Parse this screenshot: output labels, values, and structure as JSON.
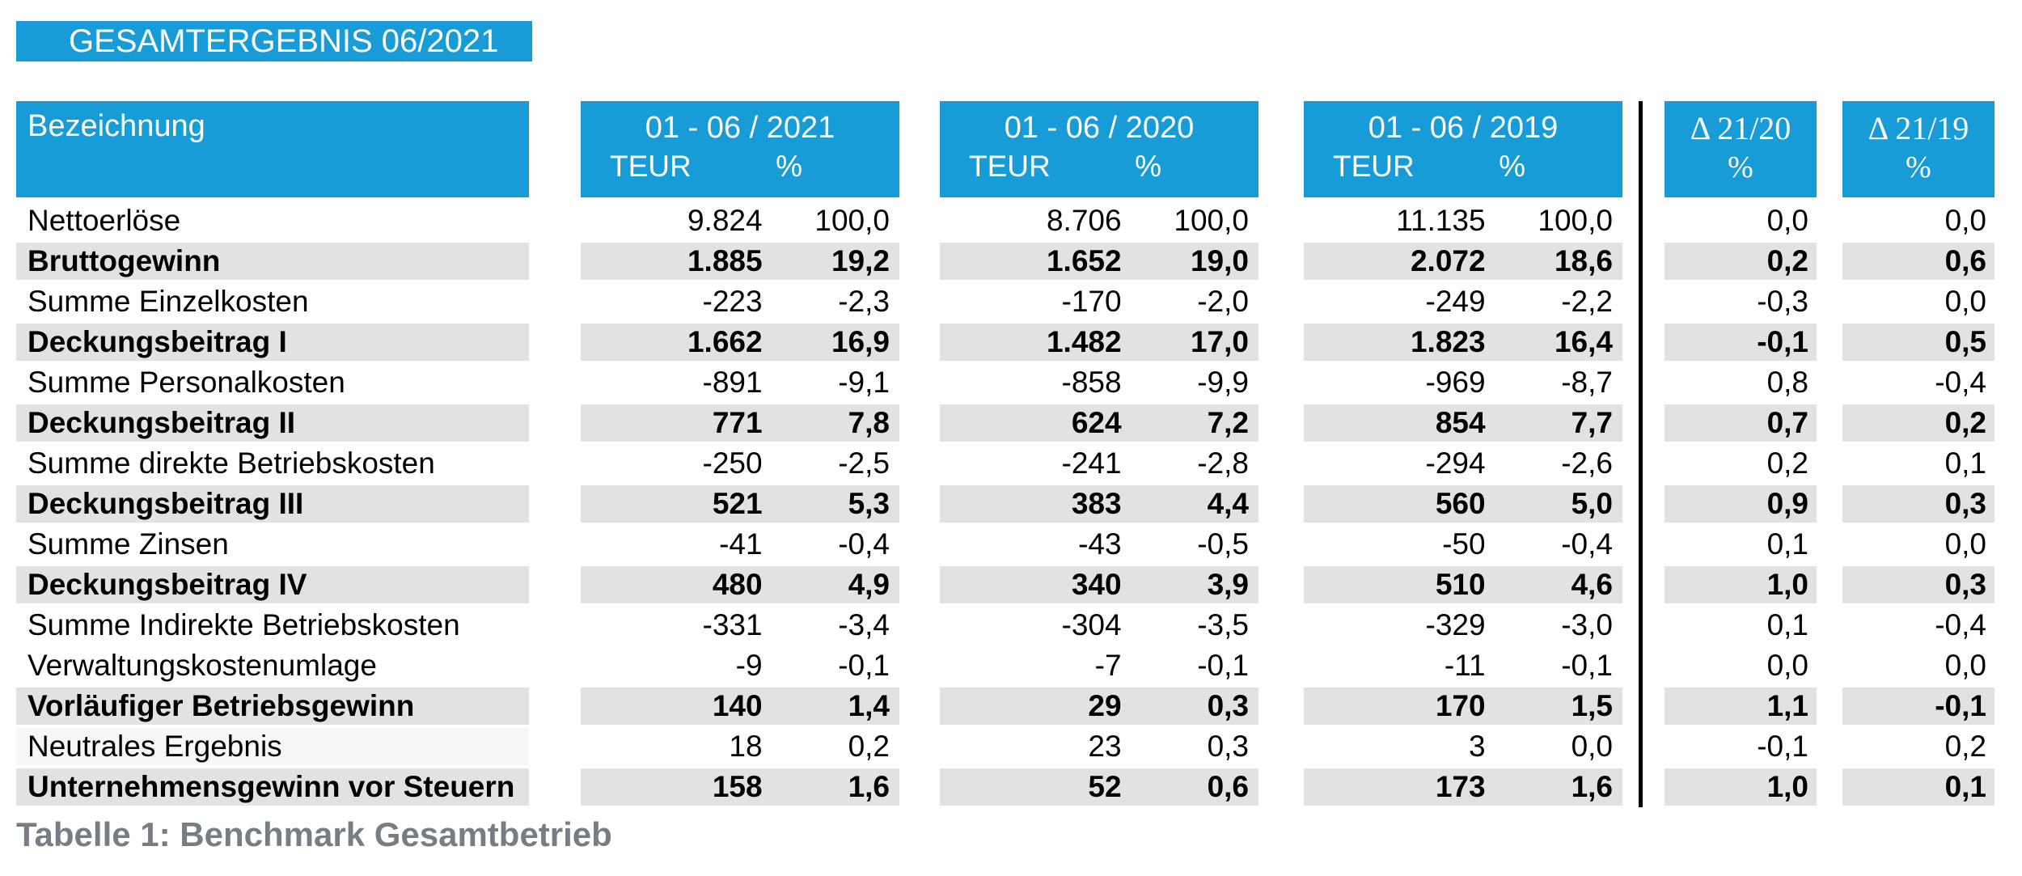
{
  "title": "GESAMTERGEBNIS 06/2021",
  "caption": "Tabelle 1: Benchmark Gesamtbetrieb",
  "colors": {
    "accent_blue": "#189CD8",
    "stripe_gray": "#E2E2E2",
    "stripe_faint": "#F7F7F7",
    "caption_gray": "#777E83",
    "divider_black": "#000000"
  },
  "table": {
    "label_header": "Bezeichnung",
    "period_groups": [
      {
        "label": "01 - 06 / 2021",
        "unit_label": "TEUR",
        "pct_label": "%"
      },
      {
        "label": "01 - 06 / 2020",
        "unit_label": "TEUR",
        "pct_label": "%"
      },
      {
        "label": "01 - 06 / 2019",
        "unit_label": "TEUR",
        "pct_label": "%"
      }
    ],
    "delta_groups": [
      {
        "label": "Δ 21/20",
        "pct_label": "%"
      },
      {
        "label": "Δ 21/19",
        "pct_label": "%"
      }
    ],
    "rows": [
      {
        "label": "Nettoerlöse",
        "bold": false,
        "p2021": {
          "teur": "9.824",
          "pct": "100,0"
        },
        "p2020": {
          "teur": "8.706",
          "pct": "100,0"
        },
        "p2019": {
          "teur": "11.135",
          "pct": "100,0"
        },
        "d2120": "0,0",
        "d2119": "0,0"
      },
      {
        "label": "Bruttogewinn",
        "bold": true,
        "p2021": {
          "teur": "1.885",
          "pct": "19,2"
        },
        "p2020": {
          "teur": "1.652",
          "pct": "19,0"
        },
        "p2019": {
          "teur": "2.072",
          "pct": "18,6"
        },
        "d2120": "0,2",
        "d2119": "0,6"
      },
      {
        "label": "Summe Einzelkosten",
        "bold": false,
        "p2021": {
          "teur": "-223",
          "pct": "-2,3"
        },
        "p2020": {
          "teur": "-170",
          "pct": "-2,0"
        },
        "p2019": {
          "teur": "-249",
          "pct": "-2,2"
        },
        "d2120": "-0,3",
        "d2119": "0,0"
      },
      {
        "label": "Deckungsbeitrag I",
        "bold": true,
        "p2021": {
          "teur": "1.662",
          "pct": "16,9"
        },
        "p2020": {
          "teur": "1.482",
          "pct": "17,0"
        },
        "p2019": {
          "teur": "1.823",
          "pct": "16,4"
        },
        "d2120": "-0,1",
        "d2119": "0,5"
      },
      {
        "label": "Summe Personalkosten",
        "bold": false,
        "p2021": {
          "teur": "-891",
          "pct": "-9,1"
        },
        "p2020": {
          "teur": "-858",
          "pct": "-9,9"
        },
        "p2019": {
          "teur": "-969",
          "pct": "-8,7"
        },
        "d2120": "0,8",
        "d2119": "-0,4"
      },
      {
        "label": "Deckungsbeitrag II",
        "bold": true,
        "p2021": {
          "teur": "771",
          "pct": "7,8"
        },
        "p2020": {
          "teur": "624",
          "pct": "7,2"
        },
        "p2019": {
          "teur": "854",
          "pct": "7,7"
        },
        "d2120": "0,7",
        "d2119": "0,2"
      },
      {
        "label": "Summe direkte Betriebskosten",
        "bold": false,
        "p2021": {
          "teur": "-250",
          "pct": "-2,5"
        },
        "p2020": {
          "teur": "-241",
          "pct": "-2,8"
        },
        "p2019": {
          "teur": "-294",
          "pct": "-2,6"
        },
        "d2120": "0,2",
        "d2119": "0,1"
      },
      {
        "label": "Deckungsbeitrag III",
        "bold": true,
        "p2021": {
          "teur": "521",
          "pct": "5,3"
        },
        "p2020": {
          "teur": "383",
          "pct": "4,4"
        },
        "p2019": {
          "teur": "560",
          "pct": "5,0"
        },
        "d2120": "0,9",
        "d2119": "0,3"
      },
      {
        "label": "Summe Zinsen",
        "bold": false,
        "p2021": {
          "teur": "-41",
          "pct": "-0,4"
        },
        "p2020": {
          "teur": "-43",
          "pct": "-0,5"
        },
        "p2019": {
          "teur": "-50",
          "pct": "-0,4"
        },
        "d2120": "0,1",
        "d2119": "0,0"
      },
      {
        "label": "Deckungsbeitrag IV",
        "bold": true,
        "p2021": {
          "teur": "480",
          "pct": "4,9"
        },
        "p2020": {
          "teur": "340",
          "pct": "3,9"
        },
        "p2019": {
          "teur": "510",
          "pct": "4,6"
        },
        "d2120": "1,0",
        "d2119": "0,3"
      },
      {
        "label": "Summe Indirekte Betriebskosten",
        "bold": false,
        "p2021": {
          "teur": "-331",
          "pct": "-3,4"
        },
        "p2020": {
          "teur": "-304",
          "pct": "-3,5"
        },
        "p2019": {
          "teur": "-329",
          "pct": "-3,0"
        },
        "d2120": "0,1",
        "d2119": "-0,4"
      },
      {
        "label": "Verwaltungskostenumlage",
        "bold": false,
        "p2021": {
          "teur": "-9",
          "pct": "-0,1"
        },
        "p2020": {
          "teur": "-7",
          "pct": "-0,1"
        },
        "p2019": {
          "teur": "-11",
          "pct": "-0,1"
        },
        "d2120": "0,0",
        "d2119": "0,0"
      },
      {
        "label": "Vorläufiger Betriebsgewinn",
        "bold": true,
        "p2021": {
          "teur": "140",
          "pct": "1,4"
        },
        "p2020": {
          "teur": "29",
          "pct": "0,3"
        },
        "p2019": {
          "teur": "170",
          "pct": "1,5"
        },
        "d2120": "1,1",
        "d2119": "-0,1"
      },
      {
        "label": "Neutrales Ergebnis",
        "bold": false,
        "label_faint": true,
        "p2021": {
          "teur": "18",
          "pct": "0,2"
        },
        "p2020": {
          "teur": "23",
          "pct": "0,3"
        },
        "p2019": {
          "teur": "3",
          "pct": "0,0"
        },
        "d2120": "-0,1",
        "d2119": "0,2"
      },
      {
        "label": "Unternehmensgewinn vor Steuern",
        "bold": true,
        "p2021": {
          "teur": "158",
          "pct": "1,6"
        },
        "p2020": {
          "teur": "52",
          "pct": "0,6"
        },
        "p2019": {
          "teur": "173",
          "pct": "1,6"
        },
        "d2120": "1,0",
        "d2119": "0,1"
      }
    ]
  }
}
